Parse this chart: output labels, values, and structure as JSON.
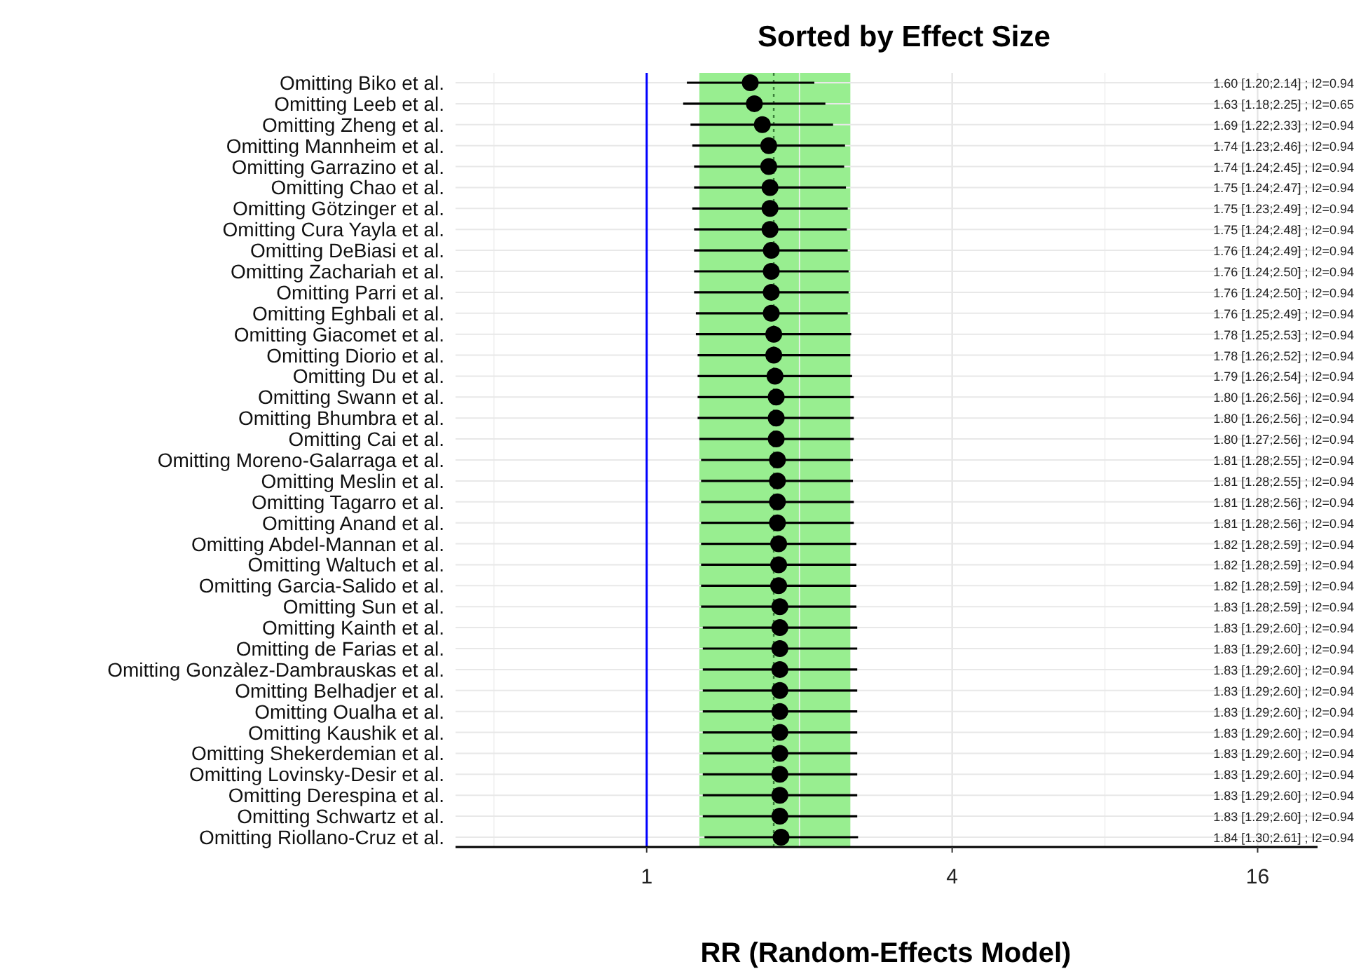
{
  "chart_data": {
    "type": "scatter",
    "orientation": "horizontal",
    "title": "Sorted by Effect Size",
    "xlabel": "RR (Random-Effects Model)",
    "log": "x",
    "xlim": [
      0.42,
      21
    ],
    "xticks": [
      {
        "value": 0.5,
        "label": null
      },
      1,
      {
        "value": 2,
        "label": null
      },
      4,
      {
        "value": 8,
        "label": null
      },
      16
    ],
    "grid": true,
    "marker": "circle",
    "color": "#000000",
    "categories": [
      "Omitting Biko et al.",
      "Omitting Leeb et al.",
      "Omitting Zheng et al.",
      "Omitting Mannheim et al.",
      "Omitting Garrazino et al.",
      "Omitting Chao et al.",
      "Omitting Götzinger et al.",
      "Omitting Cura Yayla et al.",
      "Omitting DeBiasi et al.",
      "Omitting Zachariah et al.",
      "Omitting Parri et al.",
      "Omitting Eghbali et al.",
      "Omitting Giacomet et al.",
      "Omitting Diorio et al.",
      "Omitting Du et al.",
      "Omitting Swann et al.",
      "Omitting Bhumbra et al.",
      "Omitting Cai et al.",
      "Omitting Moreno-Galarraga et al.",
      "Omitting Meslin et al.",
      "Omitting Tagarro et al.",
      "Omitting Anand et al.",
      "Omitting Abdel-Mannan et al.",
      "Omitting Waltuch et al.",
      "Omitting Garcia-Salido et al.",
      "Omitting Sun et al.",
      "Omitting Kainth et al.",
      "Omitting de Farias et al.",
      "Omitting Gonzàlez-Dambrauskas et al.",
      "Omitting Belhadjer et al.",
      "Omitting Oualha et al.",
      "Omitting Kaushik et al.",
      "Omitting Shekerdemian et al.",
      "Omitting Lovinsky-Desir et al.",
      "Omitting Derespina et al.",
      "Omitting Schwartz et al.",
      "Omitting Riollano-Cruz et al."
    ],
    "values": [
      1.6,
      1.63,
      1.69,
      1.74,
      1.74,
      1.75,
      1.75,
      1.75,
      1.76,
      1.76,
      1.76,
      1.76,
      1.78,
      1.78,
      1.79,
      1.8,
      1.8,
      1.8,
      1.81,
      1.81,
      1.81,
      1.81,
      1.82,
      1.82,
      1.82,
      1.83,
      1.83,
      1.83,
      1.83,
      1.83,
      1.83,
      1.83,
      1.83,
      1.83,
      1.83,
      1.83,
      1.84
    ],
    "errors": [
      [
        1.2,
        2.14
      ],
      [
        1.18,
        2.25
      ],
      [
        1.22,
        2.33
      ],
      [
        1.23,
        2.46
      ],
      [
        1.24,
        2.45
      ],
      [
        1.24,
        2.47
      ],
      [
        1.23,
        2.49
      ],
      [
        1.24,
        2.48
      ],
      [
        1.24,
        2.49
      ],
      [
        1.24,
        2.5
      ],
      [
        1.24,
        2.5
      ],
      [
        1.25,
        2.49
      ],
      [
        1.25,
        2.53
      ],
      [
        1.26,
        2.52
      ],
      [
        1.26,
        2.54
      ],
      [
        1.26,
        2.56
      ],
      [
        1.26,
        2.56
      ],
      [
        1.27,
        2.56
      ],
      [
        1.28,
        2.55
      ],
      [
        1.28,
        2.55
      ],
      [
        1.28,
        2.56
      ],
      [
        1.28,
        2.56
      ],
      [
        1.28,
        2.59
      ],
      [
        1.28,
        2.59
      ],
      [
        1.28,
        2.59
      ],
      [
        1.28,
        2.59
      ],
      [
        1.29,
        2.6
      ],
      [
        1.29,
        2.6
      ],
      [
        1.29,
        2.6
      ],
      [
        1.29,
        2.6
      ],
      [
        1.29,
        2.6
      ],
      [
        1.29,
        2.6
      ],
      [
        1.29,
        2.6
      ],
      [
        1.29,
        2.6
      ],
      [
        1.29,
        2.6
      ],
      [
        1.29,
        2.6
      ],
      [
        1.3,
        2.61
      ]
    ],
    "annotations": [
      "1.60 [1.20;2.14] ; I2=0.94",
      "1.63 [1.18;2.25] ; I2=0.65",
      "1.69 [1.22;2.33] ; I2=0.94",
      "1.74 [1.23;2.46] ; I2=0.94",
      "1.74 [1.24;2.45] ; I2=0.94",
      "1.75 [1.24;2.47] ; I2=0.94",
      "1.75 [1.23;2.49] ; I2=0.94",
      "1.75 [1.24;2.48] ; I2=0.94",
      "1.76 [1.24;2.49] ; I2=0.94",
      "1.76 [1.24;2.50] ; I2=0.94",
      "1.76 [1.24;2.50] ; I2=0.94",
      "1.76 [1.25;2.49] ; I2=0.94",
      "1.78 [1.25;2.53] ; I2=0.94",
      "1.78 [1.26;2.52] ; I2=0.94",
      "1.79 [1.26;2.54] ; I2=0.94",
      "1.80 [1.26;2.56] ; I2=0.94",
      "1.80 [1.26;2.56] ; I2=0.94",
      "1.80 [1.27;2.56] ; I2=0.94",
      "1.81 [1.28;2.55] ; I2=0.94",
      "1.81 [1.28;2.55] ; I2=0.94",
      "1.81 [1.28;2.56] ; I2=0.94",
      "1.81 [1.28;2.56] ; I2=0.94",
      "1.82 [1.28;2.59] ; I2=0.94",
      "1.82 [1.28;2.59] ; I2=0.94",
      "1.82 [1.28;2.59] ; I2=0.94",
      "1.83 [1.28;2.59] ; I2=0.94",
      "1.83 [1.29;2.60] ; I2=0.94",
      "1.83 [1.29;2.60] ; I2=0.94",
      "1.83 [1.29;2.60] ; I2=0.94",
      "1.83 [1.29;2.60] ; I2=0.94",
      "1.83 [1.29;2.60] ; I2=0.94",
      "1.83 [1.29;2.60] ; I2=0.94",
      "1.83 [1.29;2.60] ; I2=0.94",
      "1.83 [1.29;2.60] ; I2=0.94",
      "1.83 [1.29;2.60] ; I2=0.94",
      "1.83 [1.29;2.60] ; I2=0.94",
      "1.84 [1.30;2.61] ; I2=0.94"
    ],
    "bands": [
      {
        "axis": "x",
        "from": 1.27,
        "to": 2.52,
        "color": "#98ee90"
      }
    ],
    "ref_lines": [
      {
        "axis": "x",
        "value": 1,
        "color": "#0000ff",
        "line_style": "solid"
      },
      {
        "axis": "x",
        "value": 1.78,
        "color": "#3a7d3a",
        "line_style": "dotted"
      }
    ]
  }
}
